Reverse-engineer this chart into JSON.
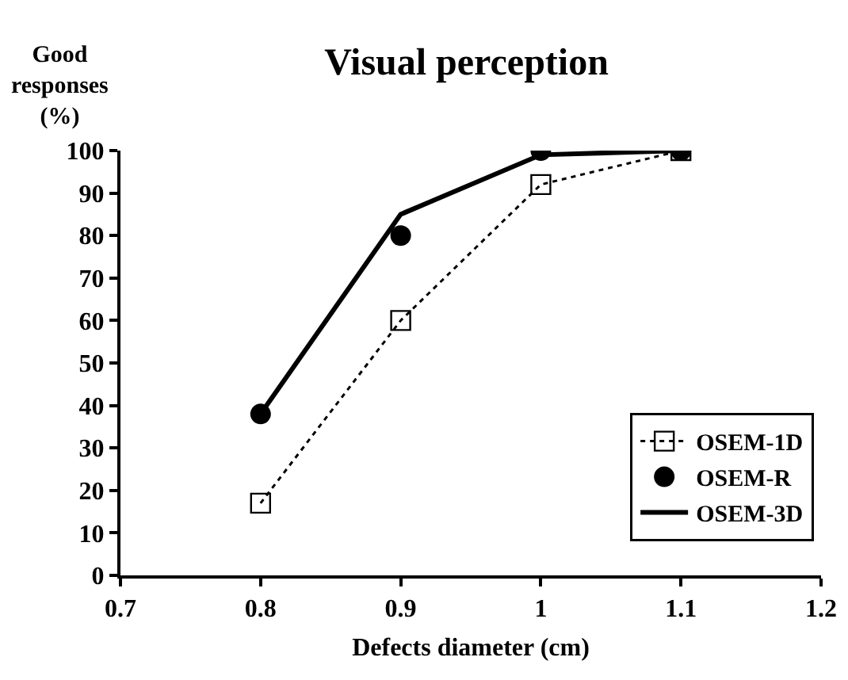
{
  "chart_data": {
    "type": "line",
    "title": "Visual perception",
    "xlabel": "Defects diameter (cm)",
    "ylabel": "Good responses (%)",
    "x": [
      0.8,
      0.9,
      1,
      1.1
    ],
    "series": [
      {
        "name": "OSEM-1D",
        "type": "line",
        "color": "#000000",
        "values": [
          17,
          60,
          92,
          100
        ],
        "marker": "square",
        "line_style": "dotted"
      },
      {
        "name": "OSEM-R",
        "type": "scatter",
        "color": "#000000",
        "values": [
          38,
          80,
          100,
          100
        ],
        "marker": "circle"
      },
      {
        "name": "OSEM-3D",
        "type": "line",
        "color": "#000000",
        "values": [
          38,
          85,
          99,
          100
        ],
        "marker": "none",
        "line_style": "solid"
      }
    ],
    "xlim": [
      0.7,
      1.2
    ],
    "xticks": [
      0.7,
      0.8,
      0.9,
      1,
      1.1,
      1.2
    ],
    "ylim": [
      0,
      100
    ],
    "yticks": [
      0,
      10,
      20,
      30,
      40,
      50,
      60,
      70,
      80,
      90,
      100
    ],
    "grid": false,
    "legend": "bottom right"
  }
}
